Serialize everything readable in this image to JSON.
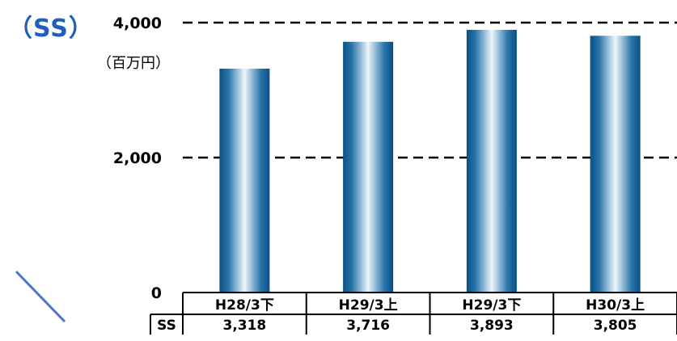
{
  "header": {
    "segment_label": "（SS）",
    "unit_label": "（百万円）"
  },
  "chart_data": {
    "type": "bar",
    "categories": [
      "H28/3下",
      "H29/3上",
      "H29/3下",
      "H30/3上"
    ],
    "series": [
      {
        "name": "SS",
        "values": [
          3318,
          3716,
          3893,
          3805
        ]
      }
    ],
    "value_labels": [
      "3,318",
      "3,716",
      "3,893",
      "3,805"
    ],
    "y_ticks": [
      {
        "value": 0,
        "label": "0"
      },
      {
        "value": 2000,
        "label": "2,000"
      },
      {
        "value": 4000,
        "label": "4,000"
      }
    ],
    "ylim": [
      0,
      4000
    ],
    "gridlines": "dashed at 2,000 and 4,000",
    "legend": "none",
    "table_row_label": "SS",
    "colors": {
      "bar_dark": "#0a4f83",
      "bar_light": "#e8f3fb",
      "accent": "#1f5fbf",
      "arc": "#4d74cf"
    }
  }
}
